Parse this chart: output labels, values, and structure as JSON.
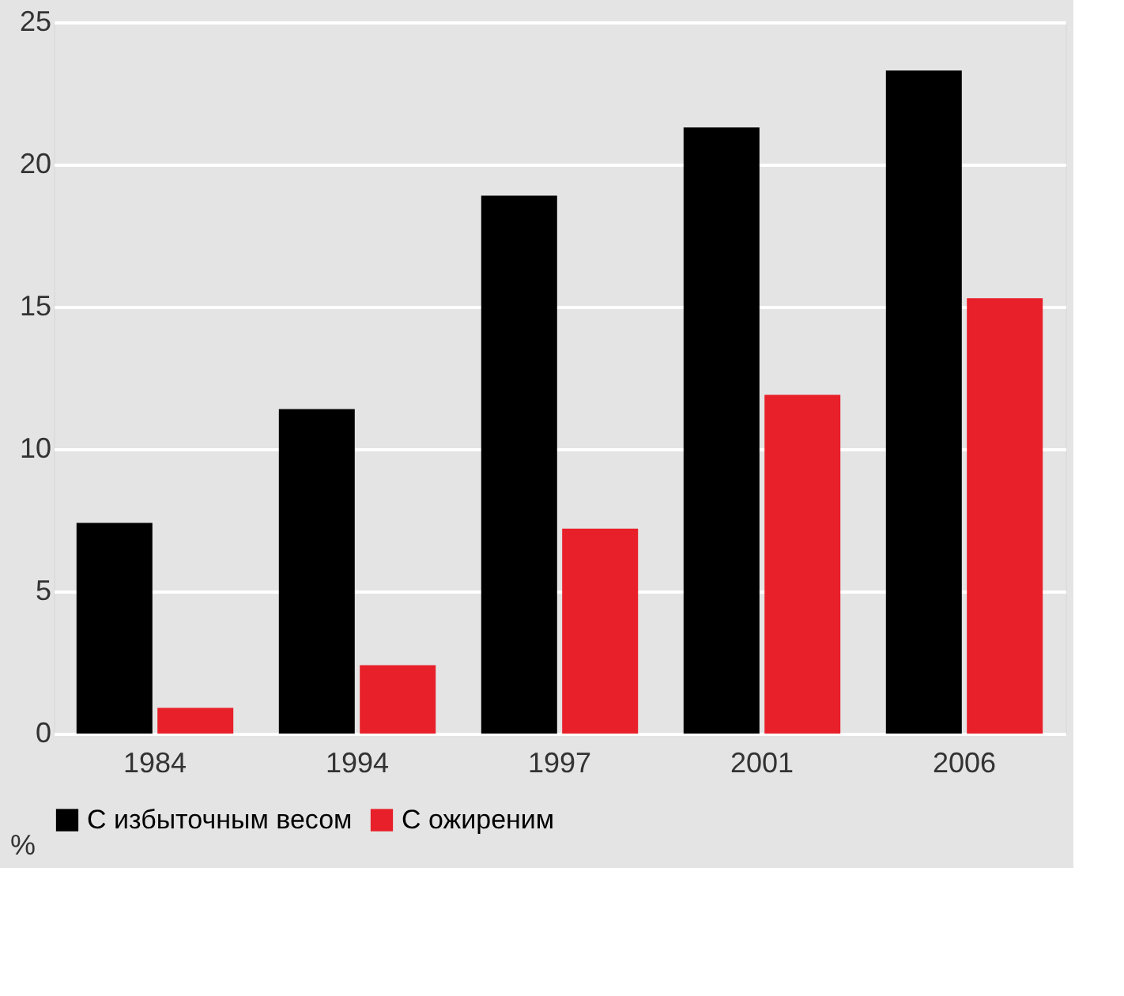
{
  "chart_data": {
    "type": "bar",
    "categories": [
      "1984",
      "1994",
      "1997",
      "2001",
      "2006"
    ],
    "series": [
      {
        "name": "С избыточным весом",
        "color": "#000000",
        "values": [
          7.4,
          11.4,
          18.9,
          21.3,
          23.3
        ]
      },
      {
        "name": "С ожиреним",
        "color": "#e8202a",
        "values": [
          0.9,
          2.4,
          7.2,
          11.9,
          15.3
        ]
      }
    ],
    "ylabel": "%",
    "ylim": [
      0,
      25
    ],
    "yticks": [
      0,
      5,
      10,
      15,
      20,
      25
    ],
    "grid": "y",
    "legend": "bottom"
  }
}
